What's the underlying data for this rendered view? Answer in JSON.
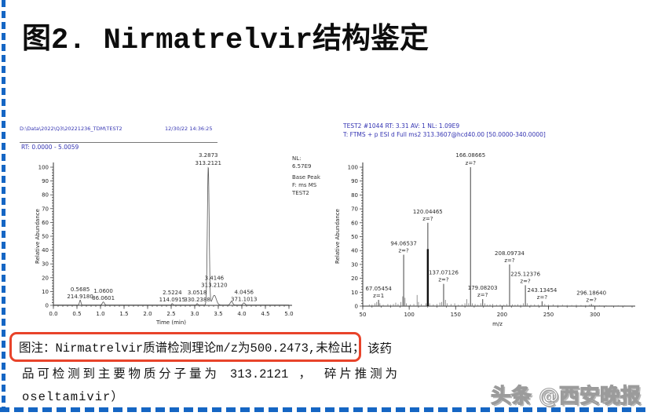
{
  "title": "图2. Nirmatrelvir结构鉴定",
  "caption": {
    "boxed_text": "图注：Nirmatrelvir质谱检测理论m/z为500.2473,未检出；",
    "suffix": "该药",
    "line2": "品可检测到主要物质分子量为 313.2121 ， 碎片推测为",
    "line3": "oseltamivir）"
  },
  "watermark": "头条 @西安晚报",
  "colors": {
    "header_blue": "#3434b2",
    "accent_red": "#e8432a",
    "trace_gray": "#555555",
    "bar_gray": "#6f6f6f",
    "bar_dark": "#101010",
    "border_blue": "#1566c4"
  },
  "chart_data": [
    {
      "type": "line",
      "name": "base-peak-chromatogram",
      "file_path": "D:\\Data\\2022\\Q3\\20221236_TDM\\TEST2",
      "datetime": "12/30/22 14:36:25",
      "rt_label": "RT: 0.0000 - 5.0059",
      "info_lines": [
        "NL:",
        "6.57E9",
        "Base Peak",
        "F: ms  MS",
        "TEST2"
      ],
      "xlabel": "Time (min)",
      "ylabel": "Relative Abundance",
      "xlim": [
        0.0,
        5.0
      ],
      "ylim": [
        0,
        100
      ],
      "xticks": [
        "0.0",
        "0.5",
        "1.0",
        "1.5",
        "2.0",
        "2.5",
        "3.0",
        "3.5",
        "4.0",
        "4.5",
        "5.0"
      ],
      "yticks": [
        0,
        10,
        20,
        30,
        40,
        50,
        60,
        70,
        80,
        90,
        100
      ],
      "x_minor_step": 0.1,
      "y_minor_step": 2,
      "peaks": [
        {
          "x": 0.5685,
          "h": 3.5,
          "w": 0.035,
          "label": [
            "0.5685",
            "214.9180"
          ]
        },
        {
          "x": 1.06,
          "h": 2.2,
          "w": 0.05,
          "label": [
            "1.0600",
            "86.0601"
          ]
        },
        {
          "x": 2.5224,
          "h": 1.0,
          "w": 0.03,
          "label": [
            "2.5224",
            "114.0915"
          ]
        },
        {
          "x": 3.0518,
          "h": 1.0,
          "w": 0.03,
          "label": [
            "3.0518",
            "330.2388"
          ]
        },
        {
          "x": 3.2873,
          "h": 100,
          "w": 0.045,
          "label": [
            "3.2873",
            "313.2121"
          ]
        },
        {
          "x": 3.4146,
          "h": 7,
          "w": 0.1,
          "label": [
            "3.4146",
            "313.2120"
          ],
          "label_dy": -8
        },
        {
          "x": 3.78,
          "h": 2.5,
          "w": 0.06
        },
        {
          "x": 4.0456,
          "h": 1.5,
          "w": 0.05,
          "label": [
            "4.0456",
            "371.1013"
          ]
        }
      ]
    },
    {
      "type": "bar",
      "name": "ms2-fragment-spectrum",
      "header1": "TEST2 #1044   RT: 3.31   AV: 1   NL: 1.09E9",
      "header2": "T: FTMS + p ESI d Full ms2 313.3607@hcd40.00 [50.0000-340.0000]",
      "xlabel": "m/z",
      "ylabel": "Relative Abundance",
      "xlim": [
        50,
        340
      ],
      "ylim": [
        0,
        100
      ],
      "xticks": [
        "50",
        "100",
        "150",
        "200",
        "250",
        "300"
      ],
      "yticks": [
        0,
        10,
        20,
        30,
        40,
        50,
        60,
        70,
        80,
        90,
        100
      ],
      "x_minor_step": 10,
      "y_minor_step": 2,
      "peaks": [
        {
          "x": 67.05454,
          "h": 4.5,
          "label": [
            "67.05454",
            "z=1"
          ]
        },
        {
          "x": 94.06537,
          "h": 37,
          "label": [
            "94.06537",
            "z=?"
          ]
        },
        {
          "x": 120.04465,
          "h": 60,
          "label": [
            "120.04465",
            "z=?"
          ]
        },
        {
          "x": 137.07126,
          "h": 16,
          "label": [
            "137.07126",
            "z=?"
          ]
        },
        {
          "x": 166.08665,
          "h": 100,
          "label": [
            "166.08665",
            "z=?"
          ]
        },
        {
          "x": 179.08203,
          "h": 5,
          "label": [
            "179.08203",
            "z=?"
          ]
        },
        {
          "x": 208.09734,
          "h": 30,
          "label": [
            "208.09734",
            "z=?"
          ]
        },
        {
          "x": 225.12376,
          "h": 15,
          "label": [
            "225.12376",
            "z=?"
          ]
        },
        {
          "x": 243.13454,
          "h": 3.5,
          "label": [
            "243.13454",
            "z=?"
          ]
        },
        {
          "x": 296.1864,
          "h": 1.5,
          "label": [
            "296.18640",
            "z=?"
          ]
        }
      ],
      "dark_bar": {
        "x": 120.04465,
        "h": 41
      },
      "minor_peaks": [
        [
          57,
          1.2
        ],
        [
          60,
          1
        ],
        [
          63,
          2
        ],
        [
          65,
          3
        ],
        [
          68.5,
          2
        ],
        [
          72,
          1
        ],
        [
          77,
          1.5
        ],
        [
          80,
          1
        ],
        [
          83,
          1.5
        ],
        [
          85.5,
          2.5
        ],
        [
          88,
          1.5
        ],
        [
          91,
          3
        ],
        [
          93,
          7
        ],
        [
          95.5,
          6
        ],
        [
          97,
          2
        ],
        [
          101,
          1.2
        ],
        [
          105,
          1.5
        ],
        [
          108.5,
          8
        ],
        [
          110,
          3
        ],
        [
          113,
          1.5
        ],
        [
          118,
          2
        ],
        [
          122,
          2
        ],
        [
          126,
          1.2
        ],
        [
          130,
          1.5
        ],
        [
          133,
          2.5
        ],
        [
          135,
          3
        ],
        [
          139,
          4.5
        ],
        [
          141,
          2
        ],
        [
          145,
          1.5
        ],
        [
          149,
          2
        ],
        [
          153,
          1
        ],
        [
          157,
          1.2
        ],
        [
          160,
          2
        ],
        [
          162,
          5
        ],
        [
          164,
          2
        ],
        [
          168,
          2
        ],
        [
          171,
          1.5
        ],
        [
          174,
          1
        ],
        [
          177,
          2
        ],
        [
          181.5,
          2
        ],
        [
          184,
          1
        ],
        [
          187,
          1.2
        ],
        [
          190,
          1.5
        ],
        [
          194,
          1
        ],
        [
          198,
          1.2
        ],
        [
          202,
          1
        ],
        [
          205,
          1.5
        ],
        [
          211,
          1.2
        ],
        [
          214,
          1
        ],
        [
          217,
          1.3
        ],
        [
          220,
          1
        ],
        [
          223,
          2
        ],
        [
          227,
          2
        ],
        [
          231,
          1
        ],
        [
          235,
          1.2
        ],
        [
          239,
          1
        ],
        [
          246,
          1.5
        ],
        [
          250,
          1
        ],
        [
          255,
          1.2
        ],
        [
          260,
          0.8
        ],
        [
          265,
          1
        ],
        [
          270,
          0.8
        ],
        [
          275,
          0.8
        ],
        [
          280,
          1
        ],
        [
          285,
          0.8
        ],
        [
          290,
          0.8
        ],
        [
          294,
          1
        ],
        [
          298,
          0.8
        ],
        [
          305,
          0.6
        ],
        [
          312,
          0.6
        ],
        [
          318,
          0.5
        ],
        [
          325,
          0.6
        ],
        [
          332,
          0.5
        ]
      ]
    }
  ]
}
